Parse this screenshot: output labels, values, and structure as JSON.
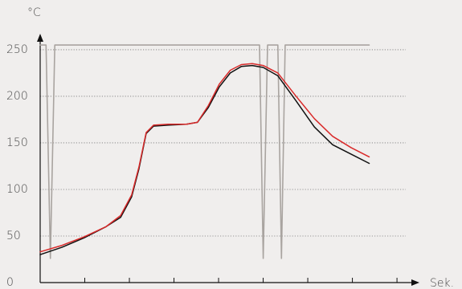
{
  "chart_data": {
    "type": "line",
    "y_unit": "°C",
    "x_unit": "Sek.",
    "ylim": [
      0,
      262
    ],
    "xlim": [
      0,
      100
    ],
    "y_ticks": [
      {
        "value": 0,
        "label": "0"
      },
      {
        "value": 50,
        "label": "50"
      },
      {
        "value": 100,
        "label": "100"
      },
      {
        "value": 150,
        "label": "150"
      },
      {
        "value": 200,
        "label": "200"
      },
      {
        "value": 250,
        "label": "250"
      }
    ],
    "x_ticks": [
      0,
      12.2,
      24.4,
      36.6,
      48.8,
      61,
      73.2,
      85.4,
      97.6
    ],
    "grid": "horizontal dotted",
    "series": [
      {
        "color": "#a9a4a0",
        "values": [
          [
            0,
            255
          ],
          [
            1.6,
            255
          ],
          [
            2.8,
            26
          ],
          [
            4.0,
            255
          ],
          [
            60,
            255
          ],
          [
            61,
            26
          ],
          [
            62.2,
            255
          ],
          [
            65,
            255
          ],
          [
            66,
            26
          ],
          [
            67,
            255
          ],
          [
            90,
            255
          ]
        ]
      },
      {
        "color": "#111111",
        "values": [
          [
            0,
            30
          ],
          [
            6,
            38
          ],
          [
            12,
            48
          ],
          [
            18,
            60
          ],
          [
            22,
            70
          ],
          [
            25,
            92
          ],
          [
            27,
            122
          ],
          [
            29,
            160
          ],
          [
            31,
            168
          ],
          [
            35,
            169
          ],
          [
            40,
            170
          ],
          [
            43,
            172
          ],
          [
            46,
            188
          ],
          [
            49,
            210
          ],
          [
            52,
            225
          ],
          [
            55,
            232
          ],
          [
            58,
            233
          ],
          [
            61,
            231
          ],
          [
            65,
            222
          ],
          [
            70,
            195
          ],
          [
            75,
            167
          ],
          [
            80,
            148
          ],
          [
            85,
            138
          ],
          [
            90,
            128
          ]
        ]
      },
      {
        "color": "#d92a2a",
        "values": [
          [
            0,
            33
          ],
          [
            6,
            40
          ],
          [
            12,
            49
          ],
          [
            18,
            60
          ],
          [
            22,
            72
          ],
          [
            25,
            94
          ],
          [
            27,
            124
          ],
          [
            29,
            161
          ],
          [
            31,
            169
          ],
          [
            35,
            170
          ],
          [
            40,
            170
          ],
          [
            43,
            172
          ],
          [
            46,
            190
          ],
          [
            49,
            213
          ],
          [
            52,
            228
          ],
          [
            55,
            234
          ],
          [
            58,
            235
          ],
          [
            61,
            233
          ],
          [
            65,
            225
          ],
          [
            70,
            200
          ],
          [
            75,
            176
          ],
          [
            80,
            157
          ],
          [
            85,
            145
          ],
          [
            90,
            135
          ]
        ]
      }
    ]
  }
}
